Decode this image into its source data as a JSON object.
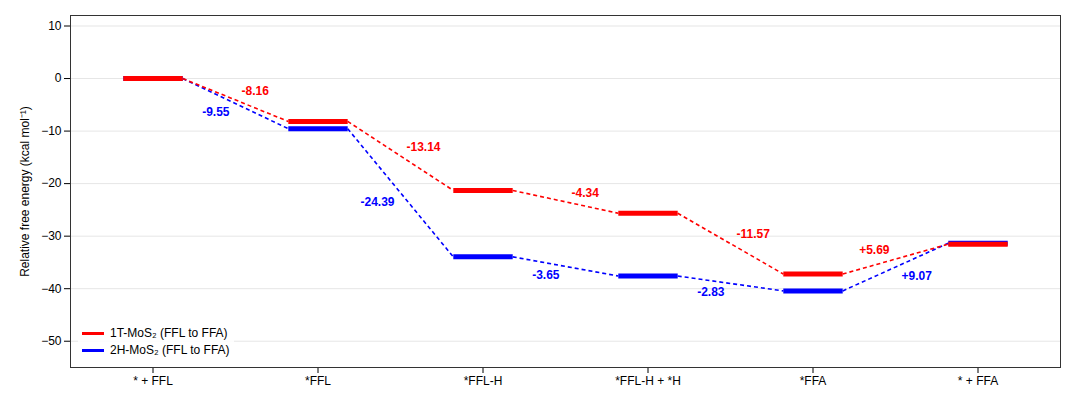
{
  "chart_data": {
    "type": "line",
    "marker": "hline",
    "line_style": "dashed",
    "categories": [
      "* + FFL",
      "*FFL",
      "*FFL-H",
      "*FFL-H + *H",
      "*FFA",
      "* + FFA"
    ],
    "ylabel": "Relative free energy (kcal mol⁻¹)",
    "ylim": [
      -55,
      12
    ],
    "yticks": [
      10,
      0,
      -10,
      -20,
      -30,
      -40,
      -50
    ],
    "grid": true,
    "legend": "lower left",
    "series": [
      {
        "name": "1T-MoS₂ (FFL to FFA)",
        "color": "#FF0000",
        "values": [
          0,
          -8.16,
          -21.3,
          -25.64,
          -37.21,
          -31.52
        ],
        "changes": [
          null,
          -8.16,
          -13.14,
          -4.34,
          -11.57,
          5.69
        ],
        "change_labels": [
          null,
          "-8.16",
          "-13.14",
          "-4.34",
          "-11.57",
          "+5.69"
        ]
      },
      {
        "name": "2H-MoS₂ (FFL to FFA)",
        "color": "#0000FF",
        "values": [
          0,
          -9.55,
          -33.94,
          -37.59,
          -40.42,
          -31.35
        ],
        "changes": [
          null,
          -9.55,
          -24.39,
          -3.65,
          -2.83,
          9.07
        ],
        "change_labels": [
          null,
          "-9.55",
          "-24.39",
          "-3.65",
          "-2.83",
          "+9.07"
        ]
      }
    ]
  }
}
